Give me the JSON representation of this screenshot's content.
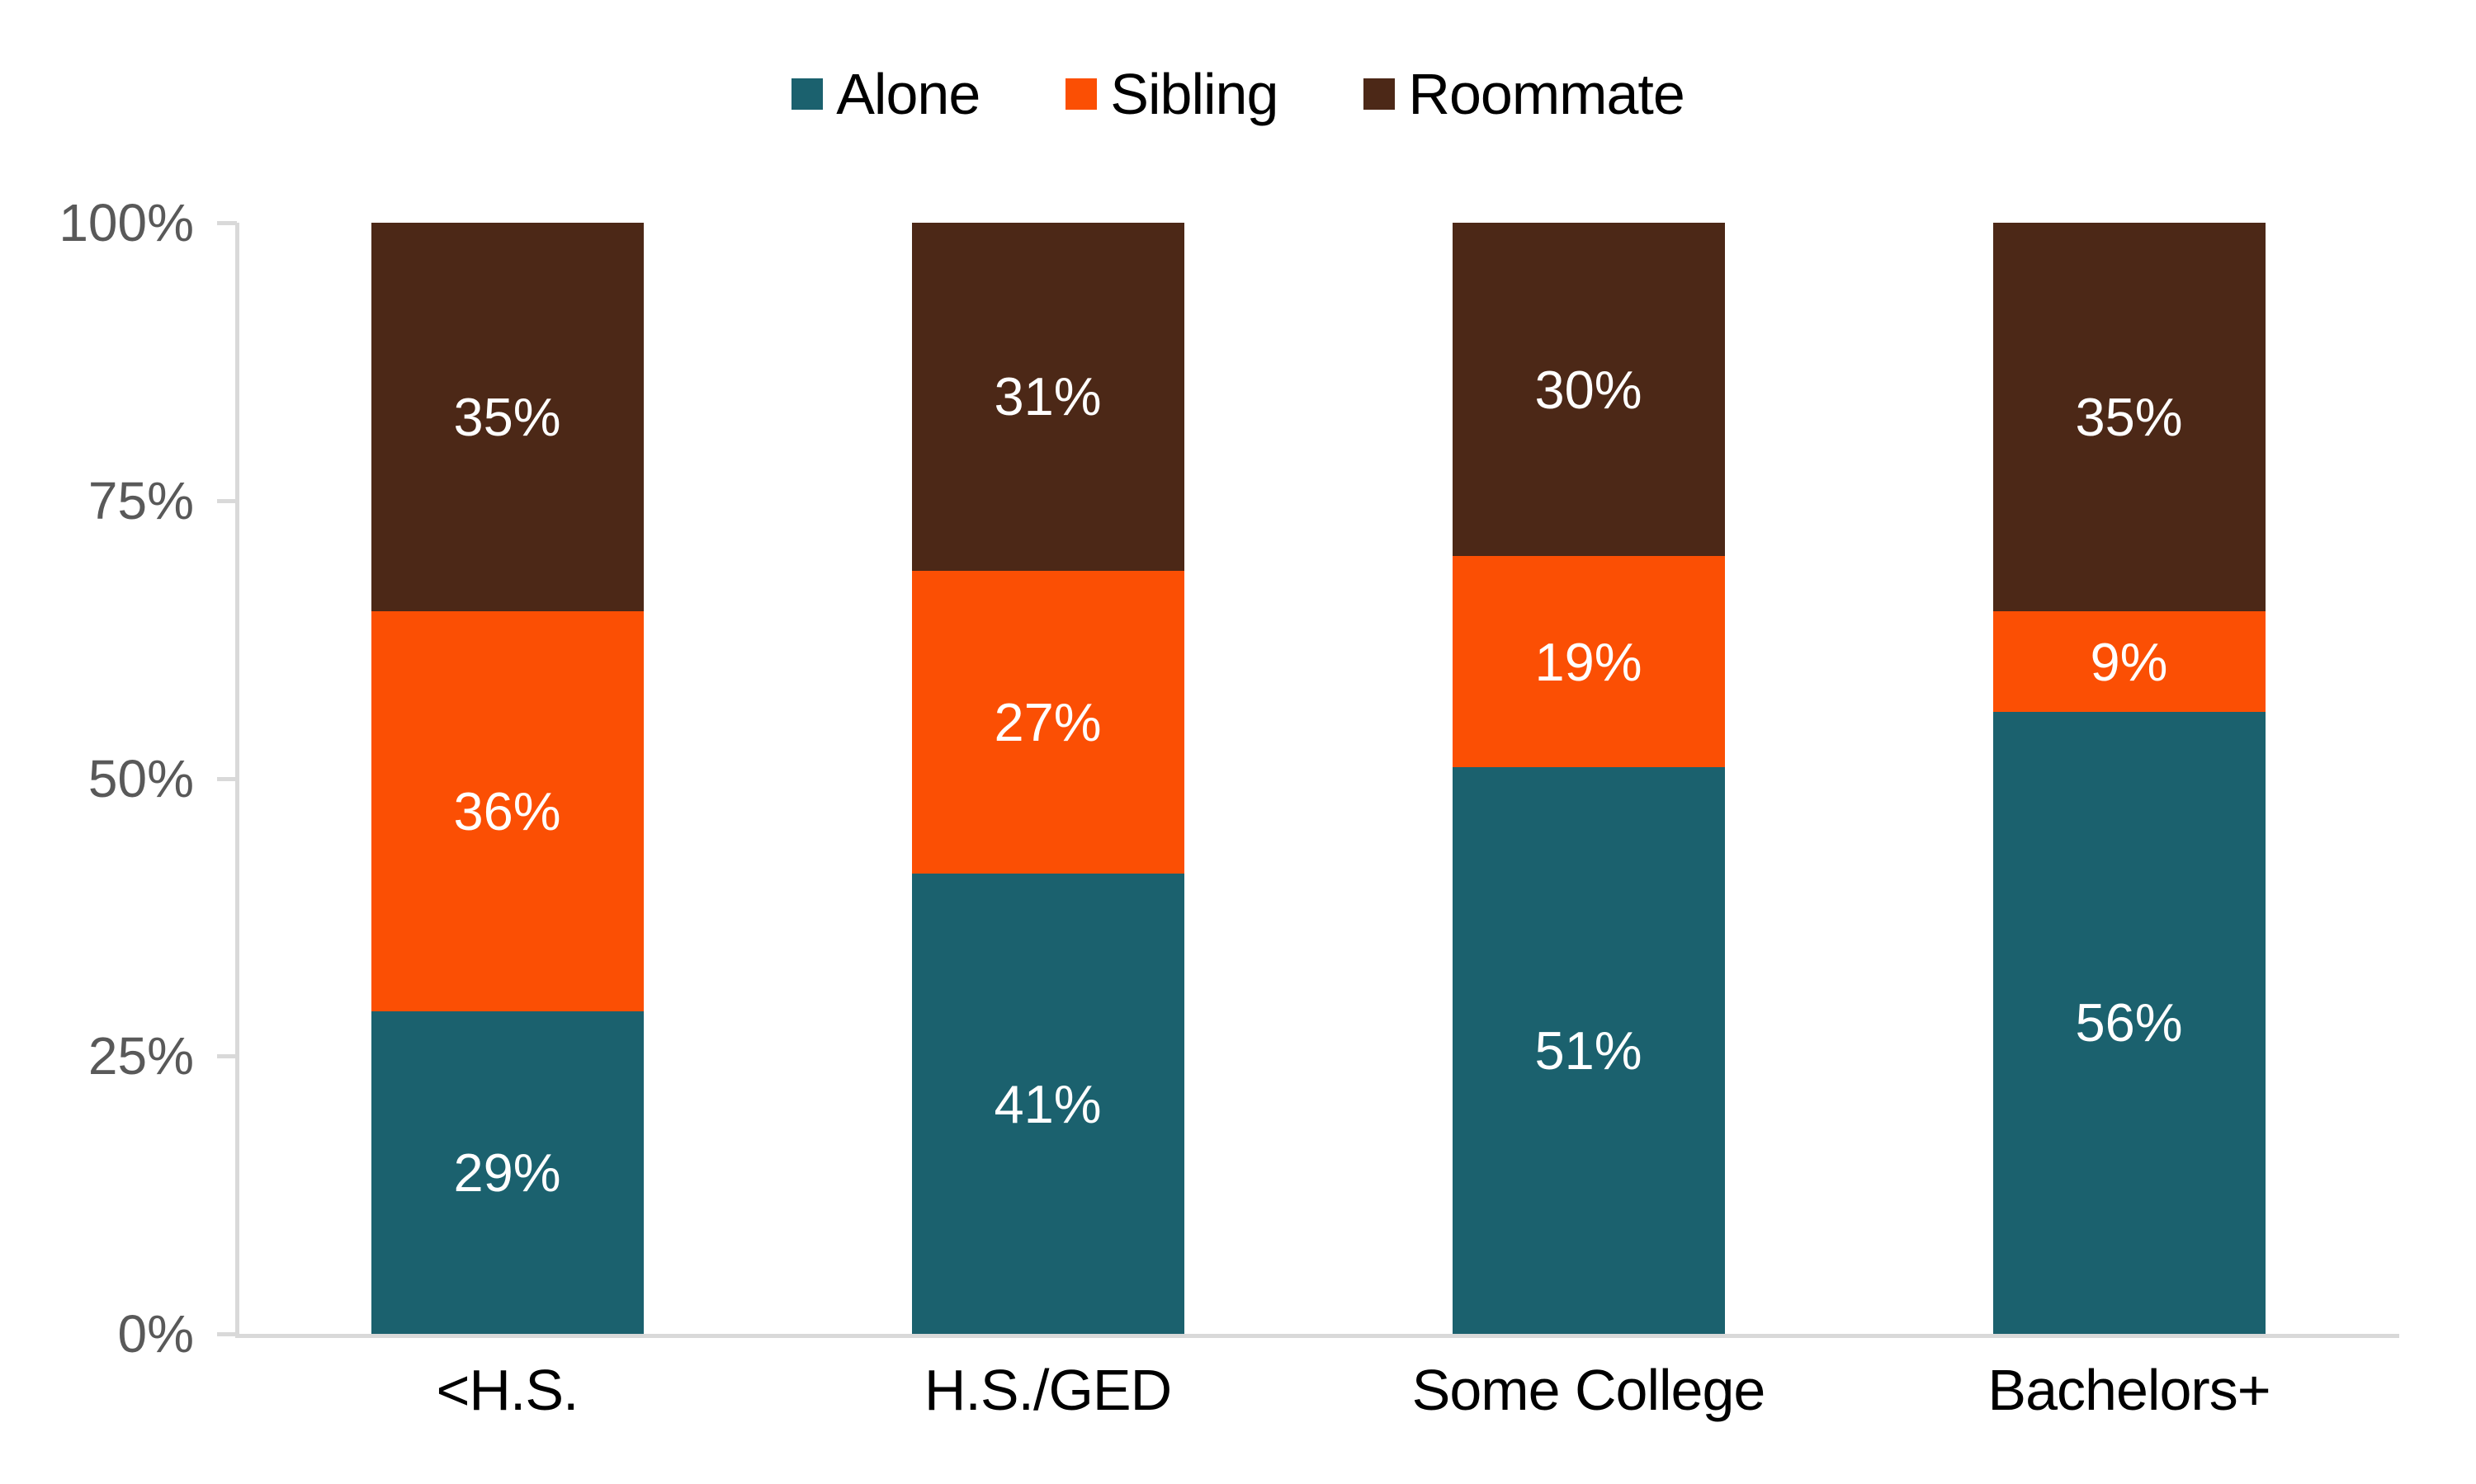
{
  "legend": {
    "items": [
      {
        "label": "Alone",
        "color": "alone"
      },
      {
        "label": "Sibling",
        "color": "sibling"
      },
      {
        "label": "Roommate",
        "color": "roommate"
      }
    ]
  },
  "colors": {
    "alone": "#1B616E",
    "sibling": "#FB4F04",
    "roommate": "#4C2817",
    "axis_line": "#D9D9D9",
    "y_tick_label": "#595959",
    "x_tick_label": "#000000",
    "data_label": "#FFFFFF",
    "footer_line_green": "#3A5A40",
    "footer_line_gray": "#DADADA"
  },
  "y_axis": {
    "ticks": [
      {
        "label": "0%",
        "value": 0
      },
      {
        "label": "25%",
        "value": 25
      },
      {
        "label": "50%",
        "value": 50
      },
      {
        "label": "75%",
        "value": 75
      },
      {
        "label": "100%",
        "value": 100
      }
    ]
  },
  "chart_data": {
    "type": "bar",
    "stacked": true,
    "percent": true,
    "categories": [
      "<H.S.",
      "H.S./GED",
      "Some College",
      "Bachelors+"
    ],
    "series": [
      {
        "name": "Alone",
        "color": "alone",
        "values": [
          29,
          41,
          51,
          56
        ]
      },
      {
        "name": "Sibling",
        "color": "sibling",
        "values": [
          36,
          27,
          19,
          9
        ]
      },
      {
        "name": "Roommate",
        "color": "roommate",
        "values": [
          35,
          31,
          30,
          35
        ]
      }
    ],
    "value_suffix": "%",
    "ylim": [
      0,
      100
    ],
    "legend_position": "top",
    "gridlines": false
  }
}
